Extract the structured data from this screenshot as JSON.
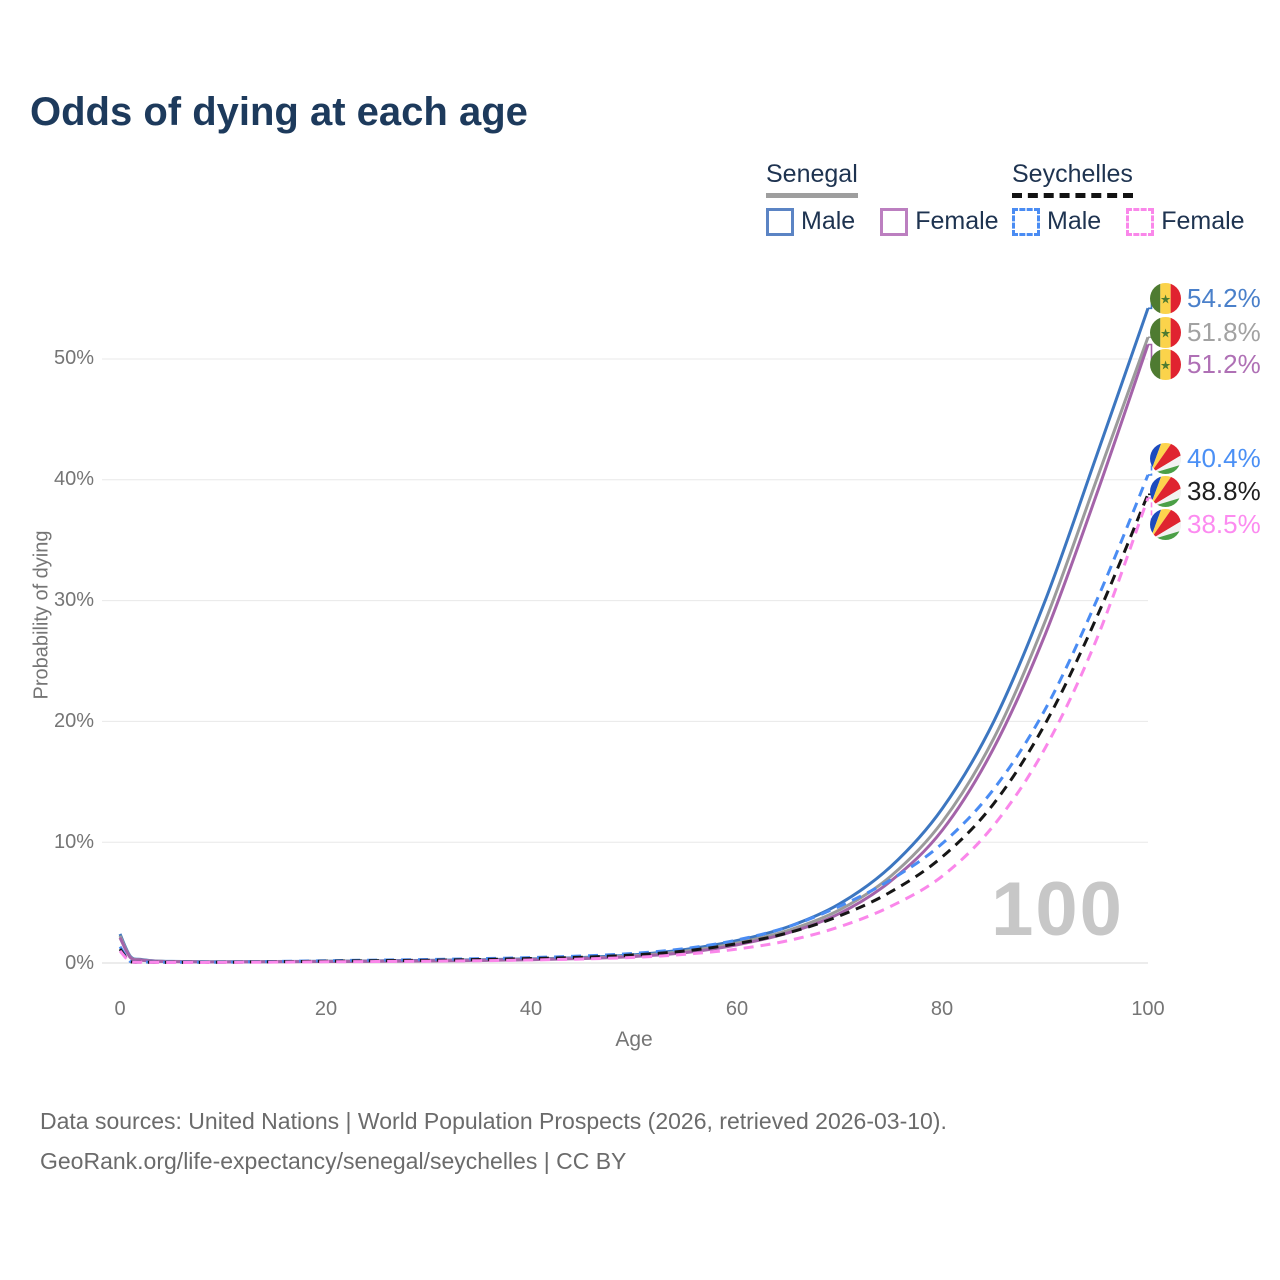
{
  "title": "Odds of dying at each age",
  "legend": {
    "senegal": {
      "label": "Senegal",
      "male": "Male",
      "female": "Female"
    },
    "seychelles": {
      "label": "Seychelles",
      "male": "Male",
      "female": "Female"
    }
  },
  "watermark": "100",
  "footer": {
    "line1": "Data sources: United Nations | World Population Prospects (2026, retrieved 2026-03-10).",
    "line2": "GeoRank.org/life-expectancy/senegal/seychelles | CC BY"
  },
  "chart_data": {
    "type": "line",
    "title": "Odds of dying at each age",
    "xlabel": "Age",
    "ylabel": "Probability of dying",
    "xlim": [
      0,
      100
    ],
    "ylim_percent": [
      0,
      55
    ],
    "grid": "horizontal",
    "legend_position": "top-right",
    "x_ticks": [
      0,
      20,
      40,
      60,
      80,
      100
    ],
    "y_ticks": [
      "0%",
      "10%",
      "20%",
      "30%",
      "40%",
      "50%"
    ],
    "ages": [
      0,
      1,
      2,
      3,
      4,
      5,
      10,
      15,
      20,
      25,
      30,
      35,
      40,
      45,
      50,
      55,
      60,
      65,
      70,
      75,
      80,
      85,
      90,
      95,
      100
    ],
    "series": [
      {
        "name": "Senegal Male",
        "country": "Senegal",
        "sex": "Male",
        "style": "solid",
        "color": "#3c76c0",
        "end_label": "54.2%",
        "values": [
          2.4,
          0.55,
          0.3,
          0.2,
          0.15,
          0.13,
          0.1,
          0.12,
          0.15,
          0.18,
          0.22,
          0.27,
          0.34,
          0.46,
          0.68,
          1.12,
          1.85,
          3.0,
          4.9,
          8.0,
          12.8,
          20.0,
          30.0,
          42.0,
          54.2
        ]
      },
      {
        "name": "Senegal Both sexes",
        "country": "Senegal",
        "sex": "Both",
        "style": "solid",
        "color": "#9b9b9b",
        "end_label": "51.8%",
        "values": [
          2.25,
          0.5,
          0.27,
          0.18,
          0.14,
          0.12,
          0.09,
          0.11,
          0.13,
          0.16,
          0.19,
          0.24,
          0.3,
          0.41,
          0.6,
          0.98,
          1.65,
          2.7,
          4.4,
          7.2,
          11.7,
          18.6,
          28.3,
          40.0,
          51.8
        ]
      },
      {
        "name": "Senegal Female",
        "country": "Senegal",
        "sex": "Female",
        "style": "solid",
        "color": "#a463a9",
        "end_label": "51.2%",
        "values": [
          2.1,
          0.46,
          0.25,
          0.17,
          0.13,
          0.11,
          0.08,
          0.1,
          0.12,
          0.14,
          0.17,
          0.21,
          0.27,
          0.37,
          0.54,
          0.86,
          1.5,
          2.5,
          4.1,
          6.8,
          11.0,
          17.8,
          27.2,
          38.8,
          51.2
        ]
      },
      {
        "name": "Seychelles Male",
        "country": "Seychelles",
        "sex": "Male",
        "style": "dashed",
        "color": "#4a8cf3",
        "end_label": "40.4%",
        "values": [
          1.35,
          0.12,
          0.08,
          0.07,
          0.06,
          0.06,
          0.07,
          0.12,
          0.19,
          0.24,
          0.29,
          0.36,
          0.45,
          0.58,
          0.8,
          1.2,
          1.9,
          3.0,
          4.7,
          6.9,
          9.9,
          14.4,
          21.0,
          30.0,
          40.4
        ]
      },
      {
        "name": "Seychelles Both sexes",
        "country": "Seychelles",
        "sex": "Both",
        "style": "dashed",
        "color": "#161616",
        "end_label": "38.8%",
        "values": [
          1.15,
          0.1,
          0.07,
          0.06,
          0.05,
          0.05,
          0.06,
          0.1,
          0.15,
          0.19,
          0.23,
          0.29,
          0.37,
          0.48,
          0.67,
          1.0,
          1.6,
          2.5,
          3.9,
          5.9,
          8.8,
          13.2,
          19.8,
          28.6,
          38.8
        ]
      },
      {
        "name": "Seychelles Female",
        "country": "Seychelles",
        "sex": "Female",
        "style": "dashed",
        "color": "#fa87ea",
        "end_label": "38.5%",
        "values": [
          1.0,
          0.09,
          0.06,
          0.05,
          0.04,
          0.04,
          0.05,
          0.07,
          0.1,
          0.12,
          0.15,
          0.19,
          0.25,
          0.33,
          0.47,
          0.72,
          1.15,
          1.85,
          3.0,
          4.7,
          7.2,
          11.4,
          17.8,
          26.8,
          38.5
        ]
      }
    ]
  }
}
